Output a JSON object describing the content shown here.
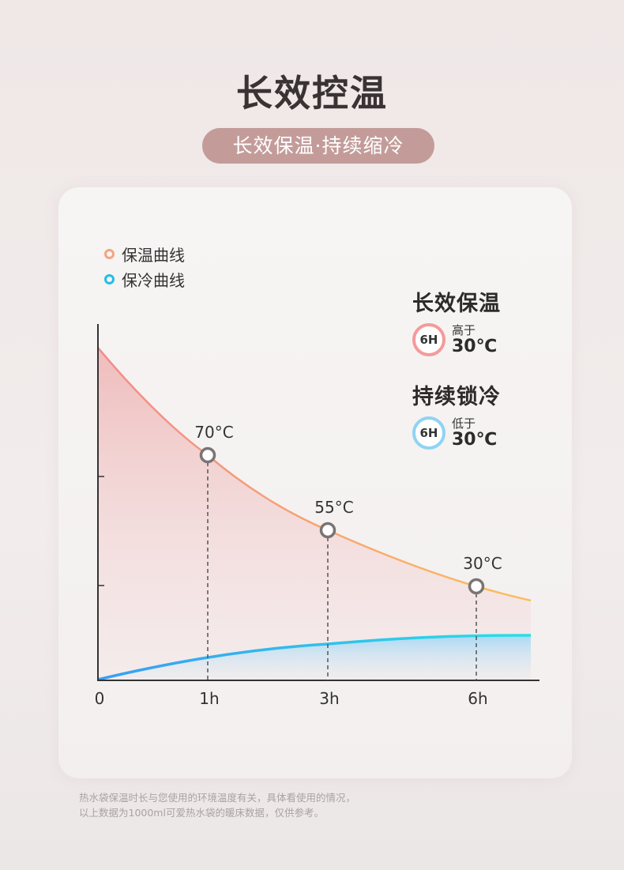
{
  "header": {
    "title": "长效控温",
    "subtitle": "长效保温·持续缩冷"
  },
  "legend": [
    {
      "name": "warm",
      "label": "保温曲线",
      "color": "#f3a57e"
    },
    {
      "name": "cool",
      "label": "保冷曲线",
      "color": "#23bde6"
    }
  ],
  "info": {
    "warm": {
      "title": "长效保温",
      "badge": "6H",
      "sub": "高于",
      "value": "30℃"
    },
    "cool": {
      "title": "持续锁冷",
      "badge": "6H",
      "sub": "低于",
      "value": "30℃"
    }
  },
  "chart_data": {
    "type": "line",
    "x_ticks": [
      "0",
      "1h",
      "3h",
      "6h"
    ],
    "series": [
      {
        "name": "保温曲线",
        "color": "#f3a57e",
        "points": [
          {
            "x": 1,
            "label": "70°C"
          },
          {
            "x": 3,
            "label": "55°C"
          },
          {
            "x": 6,
            "label": "30°C"
          }
        ]
      },
      {
        "name": "保冷曲线",
        "color": "#23bde6",
        "points": []
      }
    ]
  },
  "footnote": {
    "line1": "热水袋保温时长与您使用的环境温度有关，具体看使用的情况，",
    "line2": "以上数据为1000ml可爱热水袋的暖床数据，仅供参考。"
  }
}
